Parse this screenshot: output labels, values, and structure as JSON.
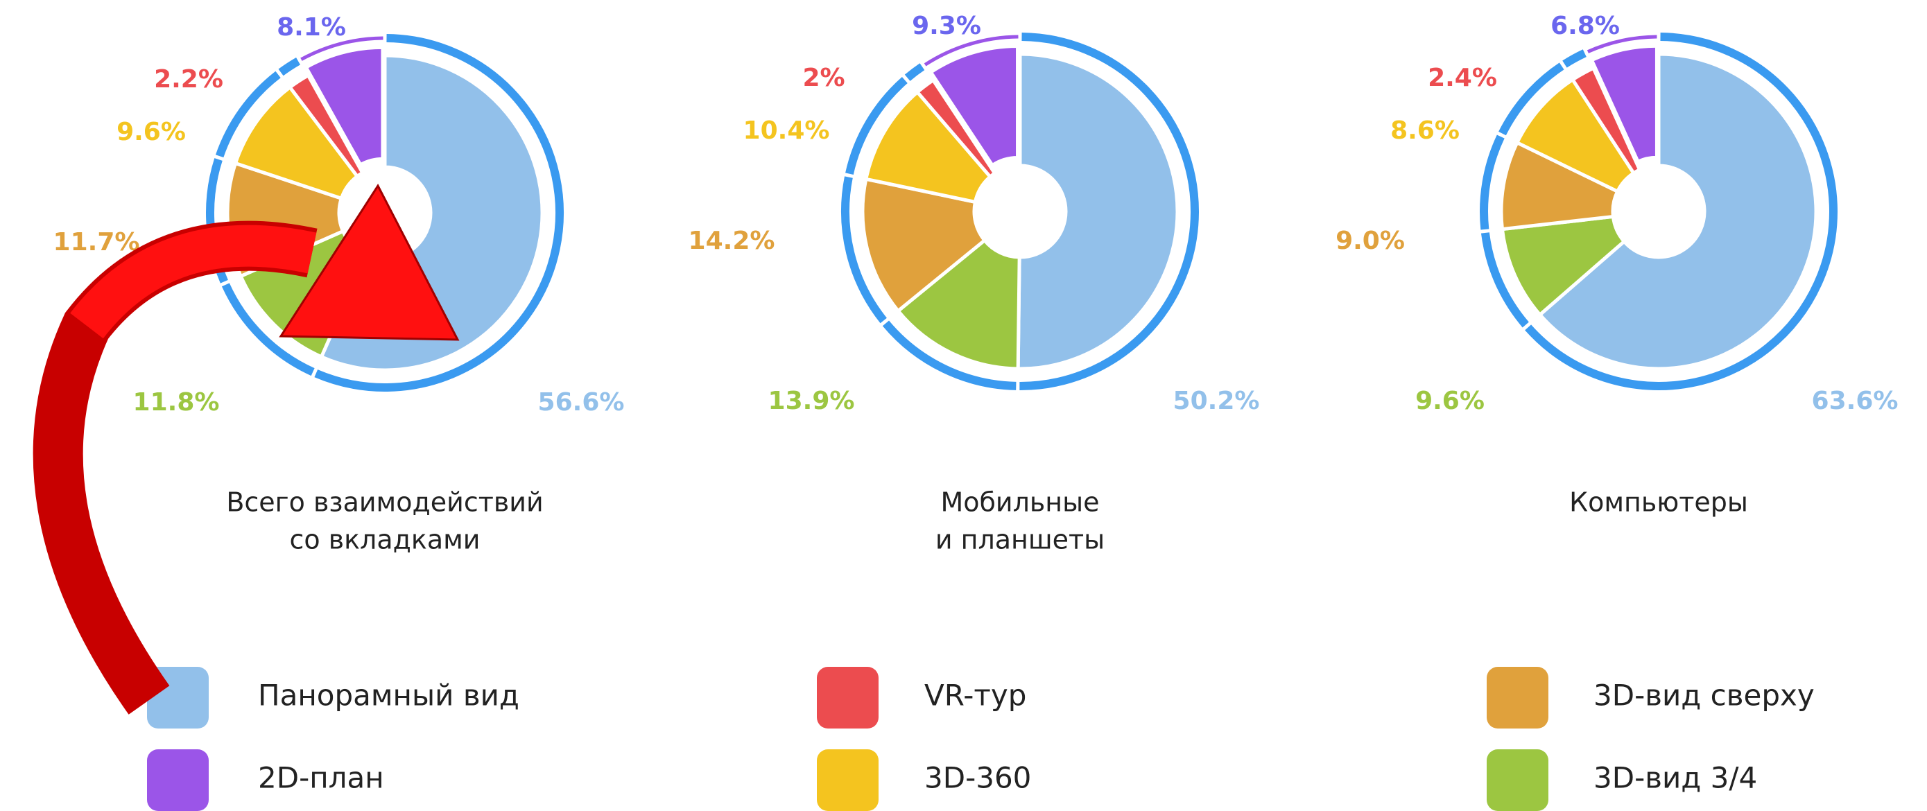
{
  "chart_data": [
    {
      "type": "pie",
      "title": [
        "Всего взаимодействий",
        "со вкладками"
      ],
      "values": [
        56.6,
        8.1,
        2.2,
        9.6,
        11.7,
        11.8
      ],
      "value_labels": [
        "56.6%",
        "8.1%",
        "2.2%",
        "9.6%",
        "11.7%",
        "11.8%"
      ]
    },
    {
      "type": "pie",
      "title": [
        "Мобильные",
        "и планшеты"
      ],
      "values": [
        50.2,
        9.3,
        2,
        10.4,
        14.2,
        13.9
      ],
      "value_labels": [
        "50.2%",
        "9.3%",
        "2%",
        "10.4%",
        "14.2%",
        "13.9%"
      ]
    },
    {
      "type": "pie",
      "title": [
        "Компьютеры"
      ],
      "values": [
        63.6,
        6.8,
        2.4,
        8.6,
        9.0,
        9.6
      ],
      "value_labels": [
        "63.6%",
        "6.8%",
        "2.4%",
        "8.6%",
        "9.0%",
        "9.6%"
      ]
    }
  ],
  "legend": {
    "labels": [
      "Панорамный вид",
      "2D-план",
      "VR-тур",
      "3D-360",
      "3D-вид сверху",
      "3D-вид 3/4"
    ],
    "colors": [
      "#92c0ea",
      "#9b55e8",
      "#ec4c4f",
      "#f4c41f",
      "#e0a13c",
      "#9cc641"
    ]
  }
}
